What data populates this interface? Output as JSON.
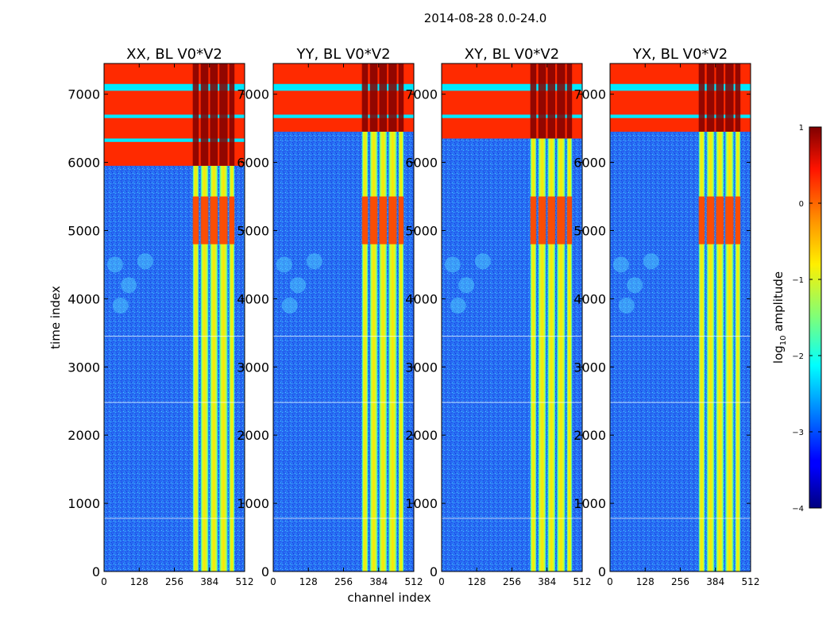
{
  "figure": {
    "suptitle": "2014-08-28 0.0-24.0",
    "shared_ylabel": "time index",
    "shared_xlabel": "channel index"
  },
  "chart_data": {
    "type": "heatmap",
    "colormap": "jet",
    "x_range": [
      0,
      512
    ],
    "y_range": [
      0,
      7450
    ],
    "x_ticks": [
      0,
      128,
      256,
      384,
      512
    ],
    "y_ticks": [
      0,
      1000,
      2000,
      3000,
      4000,
      5000,
      6000,
      7000
    ],
    "panels": [
      {
        "title": "XX, BL V0*V2",
        "bright_rows_top": 5950
      },
      {
        "title": "YY, BL V0*V2",
        "bright_rows_top": 6450
      },
      {
        "title": "XY, BL V0*V2",
        "bright_rows_top": 6350
      },
      {
        "title": "YX, BL V0*V2",
        "bright_rows_top": 6450
      }
    ],
    "band_channels": [
      [
        323,
        345
      ],
      [
        352,
        380
      ],
      [
        386,
        414
      ],
      [
        420,
        450
      ],
      [
        456,
        475
      ]
    ],
    "colorbar": {
      "label_prefix": "log",
      "label_sub": "10",
      "label_suffix": " amplitude",
      "range": [
        -4,
        1
      ],
      "ticks": [
        1,
        0,
        -1,
        -2,
        -3,
        -4
      ],
      "tick_labels": [
        "1",
        "0",
        "−1",
        "−2",
        "−3",
        "−4"
      ]
    }
  }
}
